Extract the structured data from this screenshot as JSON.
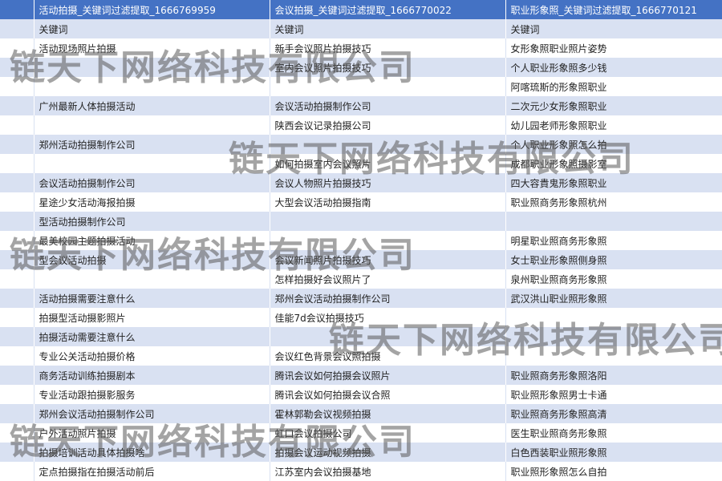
{
  "table": {
    "headers": [
      "活动拍摄_关键词过滤提取_1666769959",
      "会议拍摄_关键词过滤提取_1666770022",
      "职业形象照_关键词过滤提取_1666770121"
    ],
    "rows": [
      [
        "关键词",
        "关键词",
        "关键词"
      ],
      [
        "活动现场照片拍摄",
        "新手会议照片拍摄技巧",
        "女形象照职业照片姿势"
      ],
      [
        null,
        "室内会议照片拍摄技巧",
        "个人职业形象照多少钱"
      ],
      [
        null,
        null,
        "阿喀琉斯的形象照职业"
      ],
      [
        "广州最新人体拍摄活动",
        "会议活动拍摄制作公司",
        "二次元少女形象照职业"
      ],
      [
        null,
        "陕西会议记录拍摄公司",
        "幼儿园老师形象照职业"
      ],
      [
        "郑州活动拍摄制作公司",
        null,
        "个人职业形象照怎么拍"
      ],
      [
        null,
        "如何拍摄室内会议照片",
        "成都职业形象照摄影室"
      ],
      [
        "会议活动拍摄制作公司",
        "会议人物照片拍摄技巧",
        "四大容貴鬼形象照职业"
      ],
      [
        "星途少女活动海报拍摄",
        "大型会议活动拍摄指南",
        "职业照商务形象照杭州"
      ],
      [
        "型活动拍摄制作公司",
        null,
        null
      ],
      [
        "最美校园主题拍摄活动",
        null,
        "明星职业照商务形象照"
      ],
      [
        "型会议活动拍摄",
        "会议新闻照片拍摄技巧",
        "女士职业形象照侧身照"
      ],
      [
        null,
        "怎样拍摄好会议照片了",
        "泉州职业照商务形象照"
      ],
      [
        "活动拍摄需要注意什么",
        "郑州会议活动拍摄制作公司",
        "武汉洪山职业照形象照"
      ],
      [
        "拍摄型活动摄影照片",
        "佳能7d会议拍摄技巧",
        null
      ],
      [
        "拍摄活动需要注意什么",
        null,
        null
      ],
      [
        "专业公关活动拍摄价格",
        "会议红色背景会议照拍摄",
        null
      ],
      [
        "商务活动训练拍摄剧本",
        "腾讯会议如何拍摄会议照片",
        "职业照商务形象照洛阳"
      ],
      [
        "专业活动跟拍摄影服务",
        "腾讯会议如何拍摄会议合照",
        "职业照形象照男士卡通"
      ],
      [
        "郑州会议活动拍摄制作公司",
        "霍林郭勒会议视频拍摄",
        "职业照商务形象照高清"
      ],
      [
        "户外活动照片拍摄",
        "虹口会议拍摄公司",
        "医生职业照商务形象照"
      ],
      [
        "拍摄培训活动具体拍摄啥",
        "拍摄会议运动视频拍摄",
        "白色西装职业照形象照"
      ],
      [
        "定点拍摄指在拍摄活动前后",
        "江苏室内会议拍摄基地",
        "职业照形象照怎么自拍"
      ]
    ]
  },
  "watermarks": [
    "链天下网络科技有限公司",
    "链天下网络科技有限公司",
    "链天下网络科技有限公司",
    "链天下网络科技有限公司",
    "链天下网络科技有限公司"
  ]
}
